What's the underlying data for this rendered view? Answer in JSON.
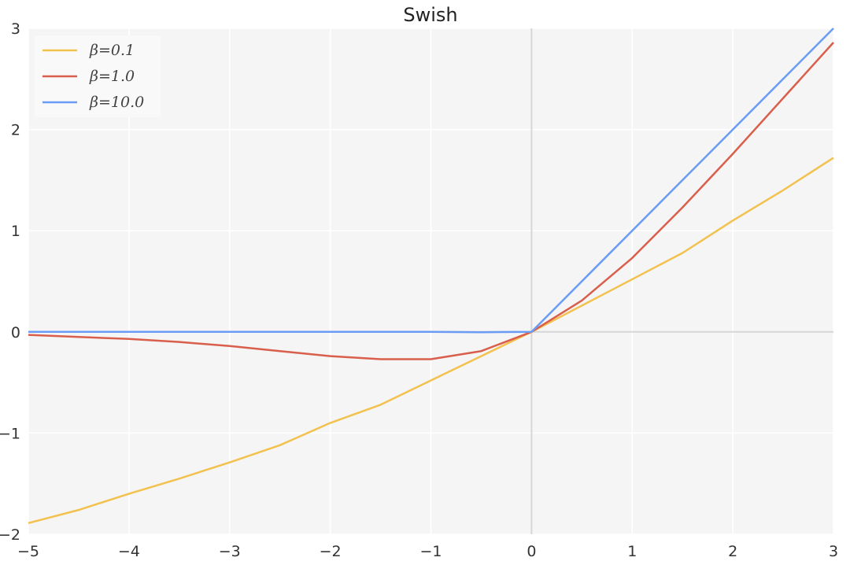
{
  "chart_data": {
    "type": "line",
    "title": "Swish",
    "xlabel": "",
    "ylabel": "",
    "xlim": [
      -5,
      3
    ],
    "ylim": [
      -2,
      3
    ],
    "x_ticks": [
      "−5",
      "−4",
      "−3",
      "−2",
      "−1",
      "0",
      "1",
      "2",
      "3"
    ],
    "y_ticks": [
      "−2",
      "−1",
      "0",
      "1",
      "2",
      "3"
    ],
    "grid": true,
    "legend_position": "top-left",
    "function": "swish(x) = x * sigmoid(beta * x)",
    "x": [
      -5,
      -4.5,
      -4,
      -3.5,
      -3,
      -2.5,
      -2,
      -1.5,
      -1,
      -0.5,
      0,
      0.5,
      1,
      1.5,
      2,
      2.5,
      3
    ],
    "series": [
      {
        "name": "β=0.1",
        "beta": 0.1,
        "color": "#f2c14e",
        "values": [
          -1.89,
          -1.76,
          -1.6,
          -1.45,
          -1.29,
          -1.12,
          -0.9,
          -0.72,
          -0.48,
          -0.24,
          0.0,
          0.26,
          0.52,
          0.78,
          1.1,
          1.4,
          1.72
        ]
      },
      {
        "name": "β=1.0",
        "beta": 1.0,
        "color": "#d95f4c",
        "values": [
          -0.03,
          -0.05,
          -0.07,
          -0.1,
          -0.14,
          -0.19,
          -0.24,
          -0.27,
          -0.27,
          -0.19,
          0.0,
          0.31,
          0.73,
          1.23,
          1.76,
          2.31,
          2.86
        ]
      },
      {
        "name": "β=10.0",
        "beta": 10.0,
        "color": "#6a9cf5",
        "values": [
          0.0,
          0.0,
          0.0,
          0.0,
          0.0,
          0.0,
          0.0,
          0.0,
          0.0,
          -0.003,
          0.0,
          0.5,
          1.0,
          1.5,
          2.0,
          2.5,
          3.0
        ]
      }
    ]
  }
}
